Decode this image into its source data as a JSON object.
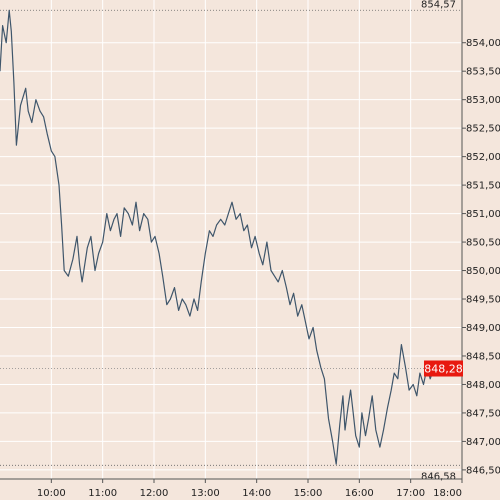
{
  "chart_data": {
    "type": "line",
    "x_ticks": [
      "10:00",
      "11:00",
      "12:00",
      "13:00",
      "14:00",
      "15:00",
      "16:00",
      "17:00",
      "18:00"
    ],
    "y_ticks": [
      "854,00",
      "853,50",
      "853,00",
      "852,50",
      "852,00",
      "851,50",
      "851,00",
      "850,50",
      "850,00",
      "849,50",
      "849,00",
      "848,50",
      "848,00",
      "847,50",
      "847,00",
      "846,50"
    ],
    "y_tick_values": [
      854.0,
      853.5,
      853.0,
      852.5,
      852.0,
      851.5,
      851.0,
      850.5,
      850.0,
      849.5,
      849.0,
      848.5,
      848.0,
      847.5,
      847.0,
      846.5
    ],
    "ylim": [
      846.34,
      854.75
    ],
    "xlim_hours": [
      9.0,
      18.0
    ],
    "high": {
      "value": 854.57,
      "label": "854,57"
    },
    "low": {
      "value": 846.58,
      "label": "846,58"
    },
    "last": {
      "value": 848.28,
      "label": "848,28"
    },
    "grid": true,
    "colors": {
      "line": "#3f566b",
      "grid": "#ffffff",
      "last_marker": "#e8190f",
      "background": "#f4e6dc"
    },
    "series": [
      {
        "x": [
          9.0,
          9.05,
          9.12,
          9.18,
          9.22,
          9.27,
          9.32,
          9.4,
          9.5,
          9.55,
          9.62,
          9.7,
          9.78,
          9.85,
          9.92,
          10.0,
          10.07,
          10.15,
          10.2,
          10.25,
          10.33,
          10.42,
          10.5,
          10.55,
          10.6,
          10.7,
          10.77,
          10.85,
          10.92,
          11.0,
          11.08,
          11.15,
          11.22,
          11.28,
          11.35,
          11.42,
          11.5,
          11.58,
          11.65,
          11.72,
          11.8,
          11.88,
          11.95,
          12.02,
          12.1,
          12.17,
          12.25,
          12.32,
          12.4,
          12.48,
          12.55,
          12.62,
          12.7,
          12.78,
          12.85,
          12.92,
          13.0,
          13.08,
          13.15,
          13.22,
          13.3,
          13.38,
          13.45,
          13.52,
          13.6,
          13.68,
          13.75,
          13.82,
          13.9,
          13.97,
          14.05,
          14.12,
          14.2,
          14.28,
          14.35,
          14.42,
          14.5,
          14.58,
          14.65,
          14.72,
          14.8,
          14.88,
          14.95,
          15.02,
          15.1,
          15.17,
          15.25,
          15.32,
          15.4,
          15.48,
          15.55,
          15.62,
          15.68,
          15.72,
          15.78,
          15.83,
          15.88,
          15.93,
          16.0,
          16.05,
          16.12,
          16.18,
          16.25,
          16.32,
          16.4,
          16.47,
          16.55,
          16.62,
          16.68,
          16.75,
          16.82,
          16.9,
          16.97,
          17.05,
          17.12,
          17.18,
          17.25,
          17.32,
          17.38,
          17.45
        ],
        "y": [
          853.5,
          854.3,
          854.0,
          854.57,
          854.2,
          853.3,
          852.2,
          852.9,
          853.2,
          852.8,
          852.6,
          853.0,
          852.8,
          852.7,
          852.4,
          852.1,
          852.0,
          851.5,
          850.8,
          850.0,
          849.9,
          850.2,
          850.6,
          850.1,
          849.8,
          850.4,
          850.6,
          850.0,
          850.3,
          850.5,
          851.0,
          850.7,
          850.9,
          851.0,
          850.6,
          851.1,
          851.0,
          850.8,
          851.2,
          850.7,
          851.0,
          850.9,
          850.5,
          850.6,
          850.3,
          849.9,
          849.4,
          849.5,
          849.7,
          849.3,
          849.5,
          849.4,
          849.2,
          849.5,
          849.3,
          849.8,
          850.3,
          850.7,
          850.6,
          850.8,
          850.9,
          850.8,
          851.0,
          851.2,
          850.9,
          851.0,
          850.7,
          850.8,
          850.4,
          850.6,
          850.3,
          850.1,
          850.5,
          850.0,
          849.9,
          849.8,
          850.0,
          849.7,
          849.4,
          849.6,
          849.2,
          849.4,
          849.1,
          848.8,
          849.0,
          848.6,
          848.3,
          848.1,
          847.4,
          847.0,
          846.6,
          847.3,
          847.8,
          847.2,
          847.6,
          847.9,
          847.5,
          847.1,
          846.9,
          847.5,
          847.1,
          847.4,
          847.8,
          847.2,
          846.9,
          847.2,
          847.6,
          847.9,
          848.2,
          848.1,
          848.7,
          848.3,
          847.9,
          848.0,
          847.8,
          848.2,
          848.0,
          848.3,
          848.1,
          848.28
        ]
      }
    ]
  }
}
